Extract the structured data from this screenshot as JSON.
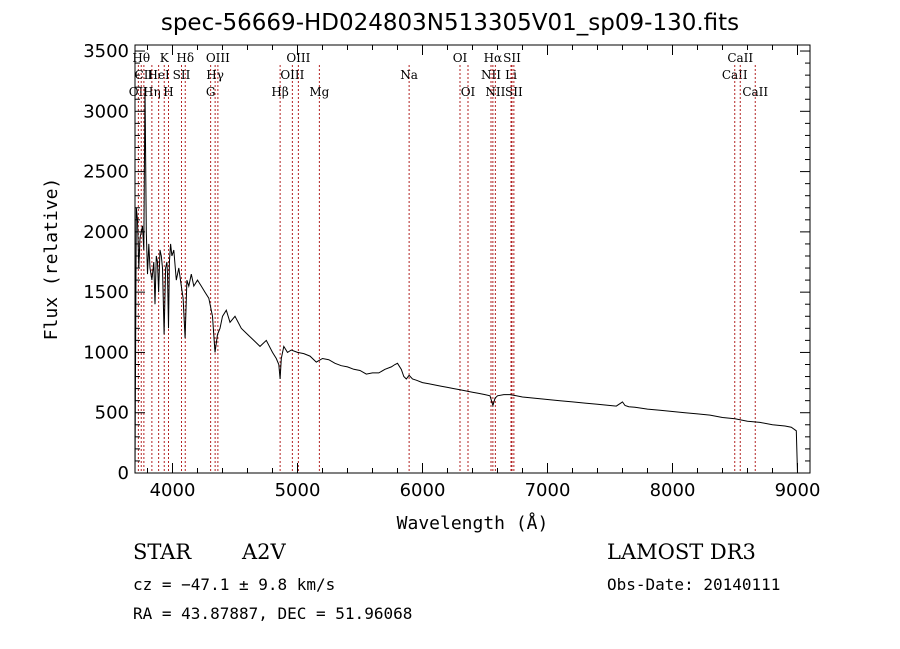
{
  "chart_data": {
    "type": "line",
    "title": "spec-56669-HD024803N513305V01_sp09-130.fits",
    "xlabel": "Wavelength (Å)",
    "ylabel": "Flux (relative)",
    "xlim": [
      3700,
      9100
    ],
    "ylim": [
      0,
      3550
    ],
    "x_ticks": [
      4000,
      5000,
      6000,
      7000,
      8000,
      9000
    ],
    "y_ticks": [
      0,
      500,
      1000,
      1500,
      2000,
      2500,
      3000,
      3500
    ],
    "series": [
      {
        "name": "spectrum",
        "x": [
          3700,
          3710,
          3720,
          3730,
          3740,
          3750,
          3760,
          3770,
          3780,
          3790,
          3800,
          3810,
          3820,
          3835,
          3850,
          3860,
          3870,
          3880,
          3889,
          3900,
          3910,
          3920,
          3933,
          3945,
          3955,
          3960,
          3968,
          3975,
          3985,
          3995,
          4010,
          4030,
          4050,
          4070,
          4085,
          4101,
          4115,
          4130,
          4150,
          4170,
          4200,
          4230,
          4260,
          4290,
          4320,
          4340,
          4360,
          4380,
          4400,
          4430,
          4460,
          4500,
          4550,
          4600,
          4650,
          4700,
          4750,
          4800,
          4830,
          4850,
          4861,
          4870,
          4890,
          4920,
          4950,
          5000,
          5050,
          5100,
          5150,
          5200,
          5250,
          5300,
          5350,
          5400,
          5450,
          5500,
          5550,
          5600,
          5650,
          5700,
          5750,
          5780,
          5800,
          5830,
          5850,
          5870,
          5893,
          5920,
          5950,
          6000,
          6050,
          6100,
          6150,
          6200,
          6250,
          6300,
          6350,
          6400,
          6450,
          6500,
          6540,
          6563,
          6580,
          6600,
          6650,
          6700,
          6750,
          6800,
          6850,
          6900,
          6950,
          7000,
          7100,
          7200,
          7300,
          7400,
          7500,
          7550,
          7600,
          7620,
          7650,
          7700,
          7800,
          7900,
          8000,
          8100,
          8200,
          8300,
          8400,
          8500,
          8600,
          8700,
          8800,
          8900,
          8950,
          8990,
          9000,
          9005
        ],
        "values": [
          0,
          2200,
          2100,
          1700,
          1950,
          2000,
          2050,
          1850,
          3200,
          2000,
          1650,
          1900,
          1700,
          1600,
          1750,
          1400,
          1800,
          1750,
          1500,
          1850,
          1800,
          1700,
          1150,
          1700,
          1750,
          1650,
          1200,
          1750,
          1900,
          1800,
          1850,
          1600,
          1700,
          1550,
          1450,
          1120,
          1600,
          1550,
          1650,
          1550,
          1600,
          1550,
          1500,
          1450,
          1300,
          1000,
          1150,
          1200,
          1300,
          1350,
          1250,
          1300,
          1200,
          1150,
          1100,
          1050,
          1100,
          1000,
          950,
          900,
          780,
          950,
          1050,
          1000,
          1020,
          1000,
          990,
          970,
          920,
          950,
          940,
          910,
          890,
          880,
          860,
          850,
          820,
          830,
          830,
          860,
          880,
          900,
          910,
          860,
          800,
          780,
          810,
          780,
          770,
          750,
          740,
          730,
          720,
          710,
          700,
          690,
          680,
          670,
          660,
          650,
          640,
          560,
          620,
          640,
          650,
          650,
          640,
          630,
          625,
          620,
          615,
          610,
          600,
          590,
          580,
          570,
          560,
          555,
          590,
          560,
          550,
          545,
          530,
          520,
          510,
          500,
          490,
          480,
          460,
          450,
          430,
          420,
          400,
          390,
          380,
          350,
          0,
          0
        ]
      }
    ],
    "spectral_lines": [
      {
        "wl": 3727,
        "label": "OII",
        "row": 3
      },
      {
        "wl": 3750,
        "label": "Hθ",
        "row": 1
      },
      {
        "wl": 3771,
        "label": "CII",
        "row": 2
      },
      {
        "wl": 3835,
        "label": "Hη",
        "row": 3
      },
      {
        "wl": 3889,
        "label": "HeI",
        "row": 2
      },
      {
        "wl": 3934,
        "label": "K",
        "row": 1
      },
      {
        "wl": 3968,
        "label": "H",
        "row": 3
      },
      {
        "wl": 4072,
        "label": "SII",
        "row": 2
      },
      {
        "wl": 4102,
        "label": "Hδ",
        "row": 1
      },
      {
        "wl": 4305,
        "label": "G",
        "row": 3
      },
      {
        "wl": 4341,
        "label": "Hγ",
        "row": 2
      },
      {
        "wl": 4363,
        "label": "OIII",
        "row": 1
      },
      {
        "wl": 4861,
        "label": "Hβ",
        "row": 3
      },
      {
        "wl": 4959,
        "label": "OIII",
        "row": 2
      },
      {
        "wl": 5007,
        "label": "OIII",
        "row": 1
      },
      {
        "wl": 5175,
        "label": "Mg",
        "row": 3
      },
      {
        "wl": 5893,
        "label": "Na",
        "row": 2
      },
      {
        "wl": 6300,
        "label": "OI",
        "row": 1
      },
      {
        "wl": 6364,
        "label": "OI",
        "row": 3
      },
      {
        "wl": 6548,
        "label": "NII",
        "row": 2
      },
      {
        "wl": 6563,
        "label": "Hα",
        "row": 1
      },
      {
        "wl": 6583,
        "label": "NII",
        "row": 3
      },
      {
        "wl": 6708,
        "label": "Li",
        "row": 2
      },
      {
        "wl": 6716,
        "label": "SII",
        "row": 1
      },
      {
        "wl": 6731,
        "label": "SII",
        "row": 3
      },
      {
        "wl": 8498,
        "label": "CaII",
        "row": 2
      },
      {
        "wl": 8542,
        "label": "CaII",
        "row": 1
      },
      {
        "wl": 8662,
        "label": "CaII",
        "row": 3
      }
    ]
  },
  "info": {
    "object_type": "STAR",
    "subclass": "A2V",
    "survey": "LAMOST DR3",
    "cz": "cz = −47.1 ± 9.8 km/s",
    "obs_date": "Obs-Date: 20140111",
    "coords": "RA =  43.87887, DEC =  51.96068"
  }
}
